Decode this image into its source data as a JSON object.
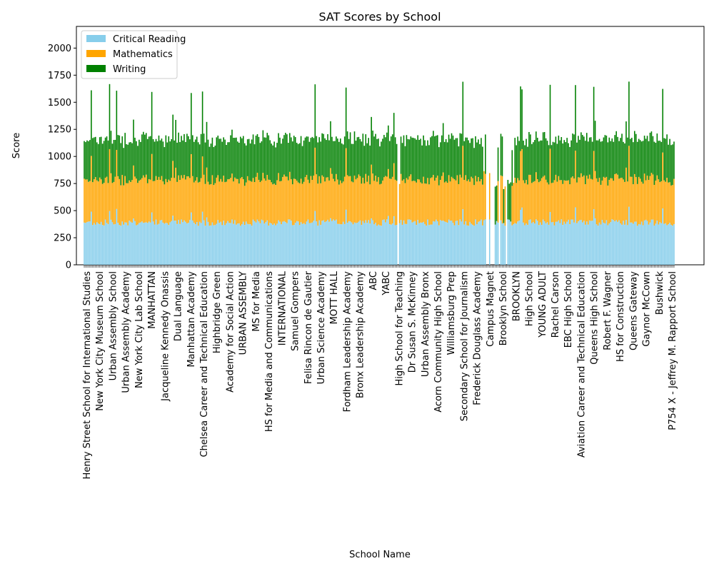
{
  "chart_data": {
    "type": "bar",
    "stacked": true,
    "title": "SAT Scores by School",
    "xlabel": "School Name",
    "ylabel": "Score",
    "ylim": [
      0,
      2200
    ],
    "yticks": [
      0,
      250,
      500,
      750,
      1000,
      1250,
      1500,
      1750,
      2000
    ],
    "grid": false,
    "legend_position": "top-left",
    "colors": {
      "Critical Reading": "#87ceeb",
      "Mathematics": "#ffa500",
      "Writing": "#008000"
    },
    "series_names": [
      "Critical Reading",
      "Mathematics",
      "Writing"
    ],
    "visible_school_labels": [
      "Henry Street School for International Studies",
      "New York City Museum School",
      "Urban Assembly School",
      "Urban Assembly Academy",
      "New York City Lab School",
      "MANHATTAN",
      "Jacqueline Kennedy Onassis",
      "Dual Language",
      "Manhattan Academy",
      "Chelsea Career and Technical Education",
      "Highbridge Green",
      "Academy for Social Action",
      "URBAN ASSEMBLY",
      "MS for Media",
      "HS for Media and Communications",
      "INTERNATIONAL",
      "Samuel Gompers",
      "Felisa Rincon de Gautier",
      "Urban Science Academy",
      "MOTT HALL",
      "Fordham Leadership Academy",
      "Bronx Leadership Academy",
      "ABC",
      "YABC",
      "High School for Teaching",
      "Dr Susan S. McKinney",
      "Urban Assembly Bronx",
      "Acorn Community High School",
      "Williamsburg Prep",
      "Secondary School for Journalism",
      "Frederick Douglass Academy",
      "Campus Magnet",
      "Brooklyn School",
      "BROOKLYN",
      "High School",
      "YOUNG ADULT",
      "Rachel Carson",
      "EBC High School",
      "Aviation Career and Technical Education",
      "Queens High School",
      "Robert F. Wagner",
      "HS for Construction",
      "Queens Gateway",
      "Gaynor McCown",
      "Bushwick",
      "P754 X - Jeffrey M. Rapport School"
    ],
    "values_summary": {
      "critical_reading_typical": [
        340,
        420
      ],
      "mathematics_typical": [
        340,
        440
      ],
      "writing_typical": [
        320,
        420
      ],
      "max_total_observed": 1960
    }
  }
}
